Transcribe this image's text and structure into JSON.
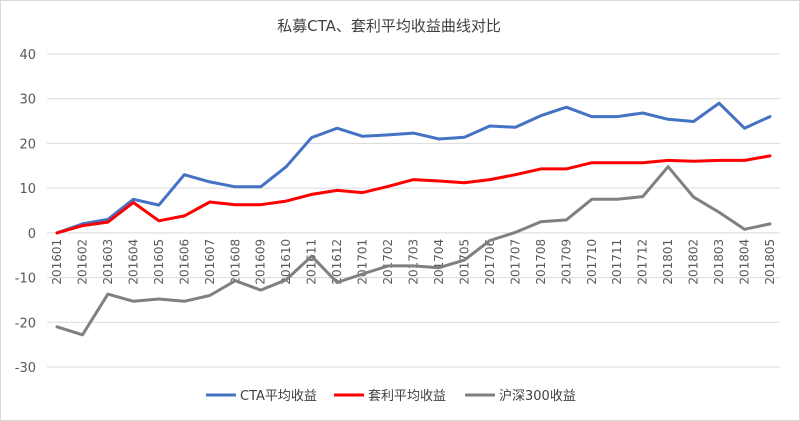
{
  "chart_data": {
    "type": "line",
    "title": "私募CTA、套利平均收益曲线对比",
    "xlabel": "",
    "ylabel": "",
    "ylim": [
      -30,
      40
    ],
    "yticks": [
      -30,
      -20,
      -10,
      0,
      10,
      20,
      30,
      40
    ],
    "grid": true,
    "legend_position": "bottom",
    "categories": [
      "201601",
      "201602",
      "201603",
      "201604",
      "201605",
      "201606",
      "201607",
      "201608",
      "201609",
      "201610",
      "201611",
      "201612",
      "201701",
      "201702",
      "201703",
      "201704",
      "201705",
      "201706",
      "201707",
      "201708",
      "201709",
      "201710",
      "201711",
      "201712",
      "201801",
      "201802",
      "201803",
      "201804",
      "201805"
    ],
    "series": [
      {
        "name": "CTA平均收益",
        "color": "#4472c4",
        "values": [
          0,
          2,
          3,
          7.5,
          6.2,
          13,
          11.4,
          10.3,
          10.3,
          14.8,
          21.3,
          23.4,
          21.6,
          21.9,
          22.3,
          21,
          21.4,
          23.9,
          23.6,
          26.2,
          28.1,
          26,
          26,
          26.8,
          25.4,
          24.9,
          29,
          23.4,
          26
        ]
      },
      {
        "name": "套利平均收益",
        "color": "#ff0000",
        "values": [
          0,
          1.6,
          2.4,
          6.8,
          2.7,
          3.8,
          6.9,
          6.3,
          6.3,
          7.1,
          8.6,
          9.5,
          9,
          10.4,
          11.9,
          11.6,
          11.2,
          11.9,
          13,
          14.3,
          14.3,
          15.7,
          15.7,
          15.7,
          16.2,
          16,
          16.2,
          16.2,
          17.2
        ]
      },
      {
        "name": "沪深300收益",
        "color": "#808080",
        "values": [
          -21,
          -22.8,
          -13.7,
          -15.3,
          -14.8,
          -15.3,
          -14,
          -10.7,
          -12.8,
          -10.5,
          -5.2,
          -11.1,
          -9.2,
          -7.4,
          -7.4,
          -7.8,
          -6.1,
          -1.7,
          0.1,
          2.5,
          2.9,
          7.5,
          7.5,
          8.1,
          14.8,
          8,
          4.6,
          0.8,
          2
        ]
      }
    ]
  }
}
